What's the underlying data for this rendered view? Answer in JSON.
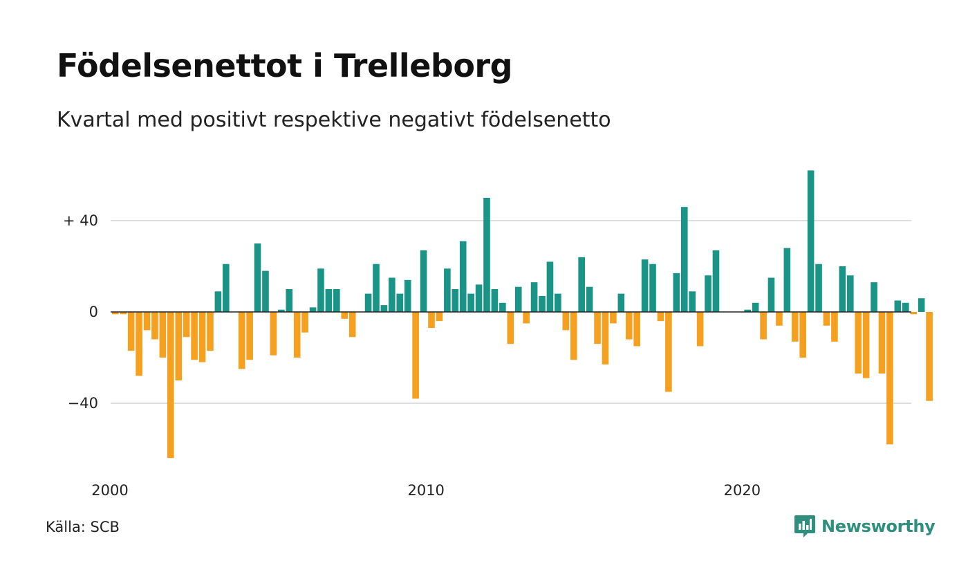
{
  "title": "Födelsenettot i Trelleborg",
  "subtitle": "Kvartal med positivt respektive negativt födelsenetto",
  "source": "Källa: SCB",
  "brand": {
    "name": "Newsworthy",
    "icon": "newsworthy-logo-icon"
  },
  "colors": {
    "positive": "#1a9486",
    "negative": "#f5a01e",
    "grid": "#dddddd",
    "zero_line": "#222222"
  },
  "chart_data": {
    "type": "bar",
    "title": "Födelsenettot i Trelleborg",
    "subtitle": "Kvartal med positivt respektive negativt födelsenetto",
    "start": "2000Q1",
    "frequency": "quarterly",
    "ylim": [
      -68,
      64
    ],
    "yticks": [
      {
        "value": 40,
        "label": "+ 40"
      },
      {
        "value": 0,
        "label": "0"
      },
      {
        "value": -40,
        "label": "−40"
      }
    ],
    "xticks": [
      {
        "quarter_index": 0,
        "label": "2000"
      },
      {
        "quarter_index": 40,
        "label": "2010"
      },
      {
        "quarter_index": 80,
        "label": "2020"
      }
    ],
    "grid": true,
    "values": [
      -1,
      -1,
      -17,
      -28,
      -8,
      -12,
      -20,
      -64,
      -30,
      -11,
      -21,
      -22,
      -17,
      9,
      21,
      0,
      -25,
      -21,
      30,
      18,
      -19,
      1,
      10,
      -20,
      -9,
      2,
      19,
      10,
      10,
      -3,
      -11,
      0,
      8,
      21,
      3,
      15,
      8,
      14,
      -38,
      27,
      -7,
      -4,
      19,
      10,
      31,
      8,
      12,
      50,
      10,
      4,
      -14,
      11,
      -5,
      13,
      7,
      22,
      8,
      -8,
      -21,
      24,
      11,
      -14,
      -23,
      -5,
      8,
      -12,
      -15,
      23,
      21,
      -4,
      -35,
      17,
      46,
      9,
      -15,
      16,
      27,
      0,
      0,
      0,
      1,
      4,
      -12,
      15,
      -6,
      28,
      -13,
      -20,
      62,
      21,
      -6,
      -13,
      20,
      16,
      -27,
      -29,
      13,
      -27,
      -58,
      5,
      4,
      -1,
      6,
      -39
    ]
  }
}
